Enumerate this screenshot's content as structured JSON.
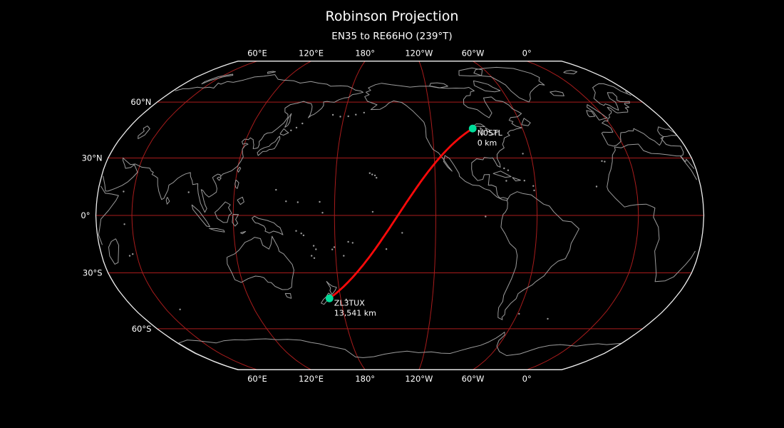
{
  "figure": {
    "title": "Robinson Projection",
    "subtitle": "EN35 to RE66HO (239°T)"
  },
  "map": {
    "projection_name": "Robinson",
    "colors": {
      "background": "#000000",
      "map_outline": "#f0f0f0",
      "coastline": "#9b9b9b",
      "graticule": "#a81c1c",
      "great_circle_path": "#fb0a0a",
      "station_marker": "#00dc99",
      "tick_label": "#ffffff",
      "station_label": "#ffffff"
    },
    "graticule": {
      "meridians": [
        {
          "lon": 60,
          "label": "60°E"
        },
        {
          "lon": 120,
          "label": "120°E"
        },
        {
          "lon": 180,
          "label": "180°"
        },
        {
          "lon": 240,
          "label": "120°W"
        },
        {
          "lon": 300,
          "label": "60°W"
        },
        {
          "lon": 360,
          "label": "0°"
        }
      ],
      "parallels": [
        {
          "lat": 60,
          "label": "60°N"
        },
        {
          "lat": 30,
          "label": "30°N"
        },
        {
          "lat": 0,
          "label": "0°"
        },
        {
          "lat": -30,
          "label": "30°S"
        },
        {
          "lat": -60,
          "label": "60°S"
        }
      ]
    },
    "stations": [
      {
        "callsign": "N0STL",
        "grid": "EN35",
        "lat": 45.5,
        "lon": -93.0,
        "distance_label": "0 km"
      },
      {
        "callsign": "ZL3TUX",
        "grid": "RE66HO",
        "lat": -43.4,
        "lon": 172.63,
        "distance_label": "13,541 km"
      }
    ],
    "path": {
      "type": "great_circle",
      "from": "EN35",
      "to": "RE66HO",
      "bearing_label": "239°T",
      "distance_label": "13,541 km"
    }
  }
}
